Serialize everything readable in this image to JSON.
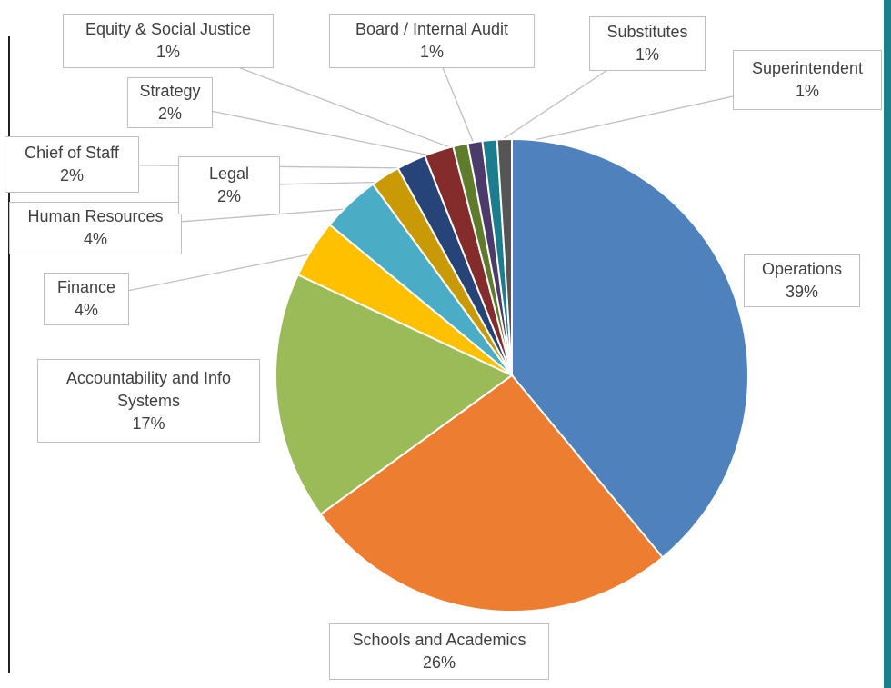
{
  "chart_data": {
    "type": "pie",
    "categories": [
      "Operations",
      "Schools and Academics",
      "Accountability and Info Systems",
      "Finance",
      "Human Resources",
      "Legal",
      "Chief of Staff",
      "Strategy",
      "Equity & Social Justice",
      "Board / Internal Audit",
      "Substitutes",
      "Superintendent"
    ],
    "values": [
      39,
      26,
      17,
      4,
      4,
      2,
      2,
      2,
      1,
      1,
      1,
      1
    ],
    "value_labels": [
      "39%",
      "26%",
      "17%",
      "4%",
      "4%",
      "2%",
      "2%",
      "2%",
      "1%",
      "1%",
      "1%",
      "1%"
    ],
    "colors": [
      "#4f81bd",
      "#ed7d31",
      "#9bbb59",
      "#ffc000",
      "#4bacc6",
      "#c99a06",
      "#264478",
      "#842b2b",
      "#5f7b2c",
      "#4b3b6b",
      "#1c7d8e",
      "#555555"
    ]
  }
}
